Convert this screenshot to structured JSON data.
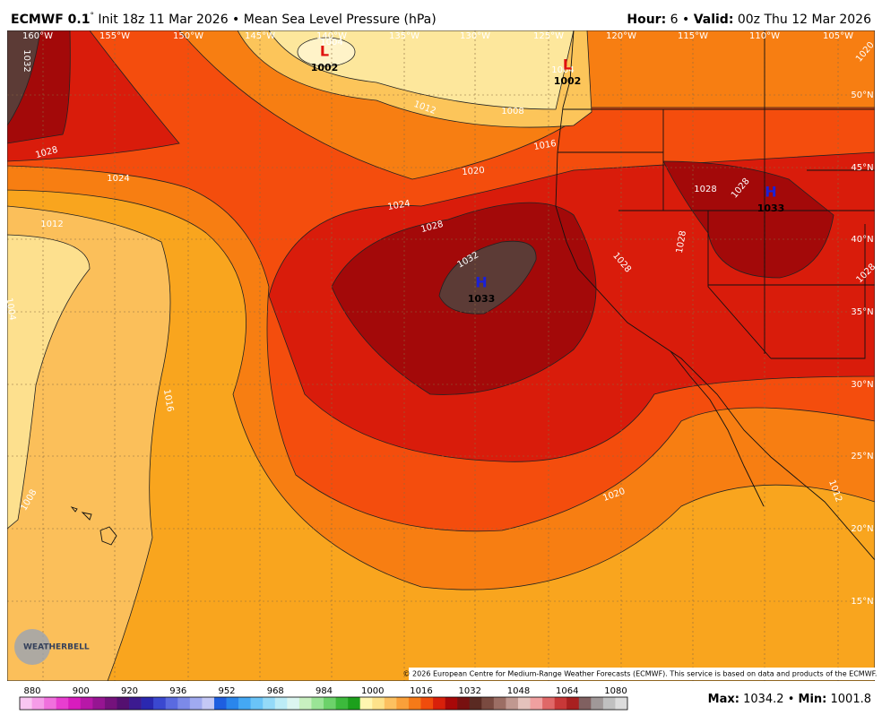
{
  "header": {
    "model": "ECMWF 0.1",
    "degree": "°",
    "info": " Init 18z 11 Mar 2026 • Mean Sea Level Pressure (hPa)",
    "hour_label": "Hour:",
    "hour_value": " 6 • ",
    "valid_label": "Valid:",
    "valid_value": " 00z Thu 12 Mar 2026"
  },
  "longitudes": [
    "160°W",
    "155°W",
    "150°W",
    "145°W",
    "140°W",
    "135°W",
    "130°W",
    "125°W",
    "120°W",
    "115°W",
    "110°W",
    "105°W"
  ],
  "latitudes": [
    "50°N",
    "45°N",
    "40°N",
    "35°N",
    "30°N",
    "25°N",
    "20°N",
    "15°N"
  ],
  "contour_labels": [
    "1032",
    "1028",
    "1024",
    "1012",
    "1004",
    "1016",
    "1008",
    "1012",
    "1008",
    "1016",
    "1020",
    "1024",
    "1028",
    "1032",
    "1020",
    "1028",
    "1028",
    "1028",
    "1028",
    "1028",
    "1020",
    "1004",
    "1004",
    "1012"
  ],
  "centers": [
    {
      "symbol": "L",
      "value": "1002"
    },
    {
      "symbol": "L",
      "value": "1002"
    },
    {
      "symbol": "H",
      "value": "1033"
    },
    {
      "symbol": "H",
      "value": "1033"
    }
  ],
  "colorbar": {
    "labels": [
      "880",
      "900",
      "920",
      "936",
      "952",
      "968",
      "984",
      "1000",
      "1016",
      "1032",
      "1048",
      "1064",
      "1080"
    ],
    "colors": [
      "#f9c6f2",
      "#f59ce8",
      "#f070dd",
      "#e83ed0",
      "#d81cbe",
      "#b818a8",
      "#961592",
      "#74127c",
      "#541070",
      "#3c1a90",
      "#2a28b0",
      "#3a48d0",
      "#5a6ae0",
      "#7c8ae8",
      "#a0aaf0",
      "#c4c8f6",
      "#1e5ee0",
      "#2a86ec",
      "#44a8f4",
      "#6ac4f8",
      "#94daf8",
      "#bcecf6",
      "#dcf6f0",
      "#c8f0c0",
      "#9ae496",
      "#6cd26a",
      "#3cba3c",
      "#1ca01c",
      "#fff6b0",
      "#fde28a",
      "#fcc060",
      "#faa03a",
      "#f67a18",
      "#f04c0c",
      "#d8200a",
      "#a80808",
      "#781010",
      "#5a2a22",
      "#7a4a40",
      "#9c6e64",
      "#c09890",
      "#e4c2bc",
      "#f0a0a0",
      "#e06868",
      "#c83838",
      "#a82020",
      "#806060",
      "#a09898",
      "#c0c0c0",
      "#dcdcdc"
    ]
  },
  "extremes": {
    "max_label": "Max:",
    "max_value": " 1034.2 • ",
    "min_label": "Min:",
    "min_value": " 1001.8"
  },
  "logo": "WEATHERBELL",
  "copyright": "© 2026 European Centre for Medium-Range Weather Forecasts (ECMWF). This service is based on data and products of the ECMWF."
}
